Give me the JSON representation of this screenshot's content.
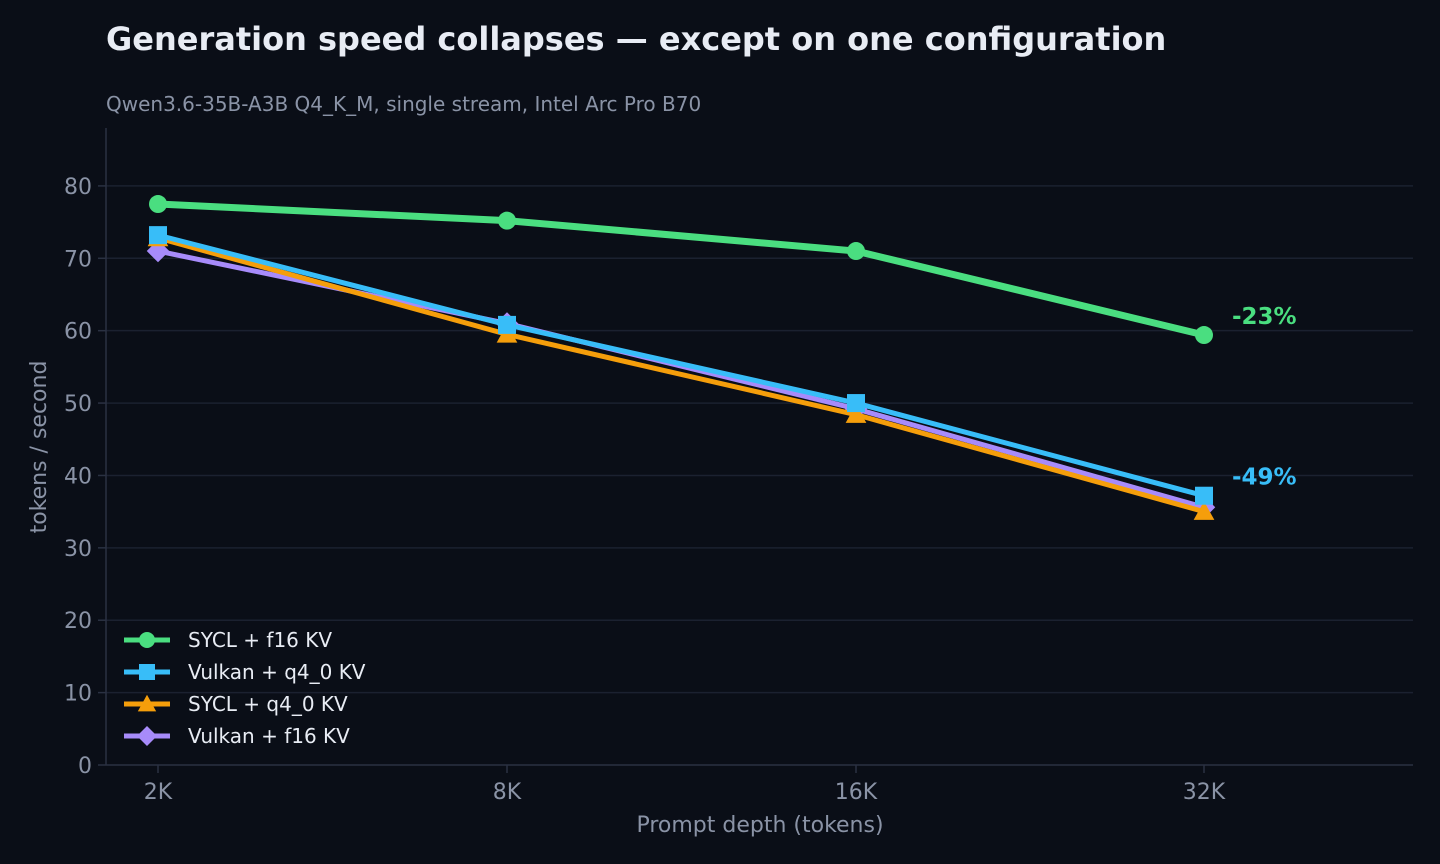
{
  "chart_data": {
    "type": "line",
    "title": "Generation speed collapses — except on one configuration",
    "subtitle": "Qwen3.6-35B-A3B Q4_K_M, single stream, Intel Arc Pro B70",
    "xlabel": "Prompt depth (tokens)",
    "ylabel": "tokens / second",
    "categories": [
      "2K",
      "8K",
      "16K",
      "32K"
    ],
    "ylim": [
      0,
      88
    ],
    "yticks": [
      0,
      10,
      20,
      30,
      40,
      50,
      60,
      70,
      80
    ],
    "grid": true,
    "legend_position": "bottom-left",
    "series": [
      {
        "name": "SYCL + f16 KV",
        "values": [
          77.5,
          75.2,
          71.0,
          59.4
        ],
        "color": "#4ade80",
        "marker": "circle"
      },
      {
        "name": "Vulkan + q4_0 KV",
        "values": [
          73.2,
          60.8,
          50.0,
          37.2
        ],
        "color": "#38bdf8",
        "marker": "square"
      },
      {
        "name": "SYCL + q4_0 KV",
        "values": [
          72.8,
          59.5,
          48.4,
          35.0
        ],
        "color": "#f59e0b",
        "marker": "triangle"
      },
      {
        "name": "Vulkan + f16 KV",
        "values": [
          71.0,
          61.0,
          49.2,
          35.6
        ],
        "color": "#a78bfa",
        "marker": "diamond"
      }
    ],
    "annotations": [
      {
        "text": "-23%",
        "series": 0,
        "category": "32K",
        "color": "#4ade80"
      },
      {
        "text": "-49%",
        "series": 1,
        "category": "32K",
        "color": "#38bdf8"
      }
    ]
  }
}
